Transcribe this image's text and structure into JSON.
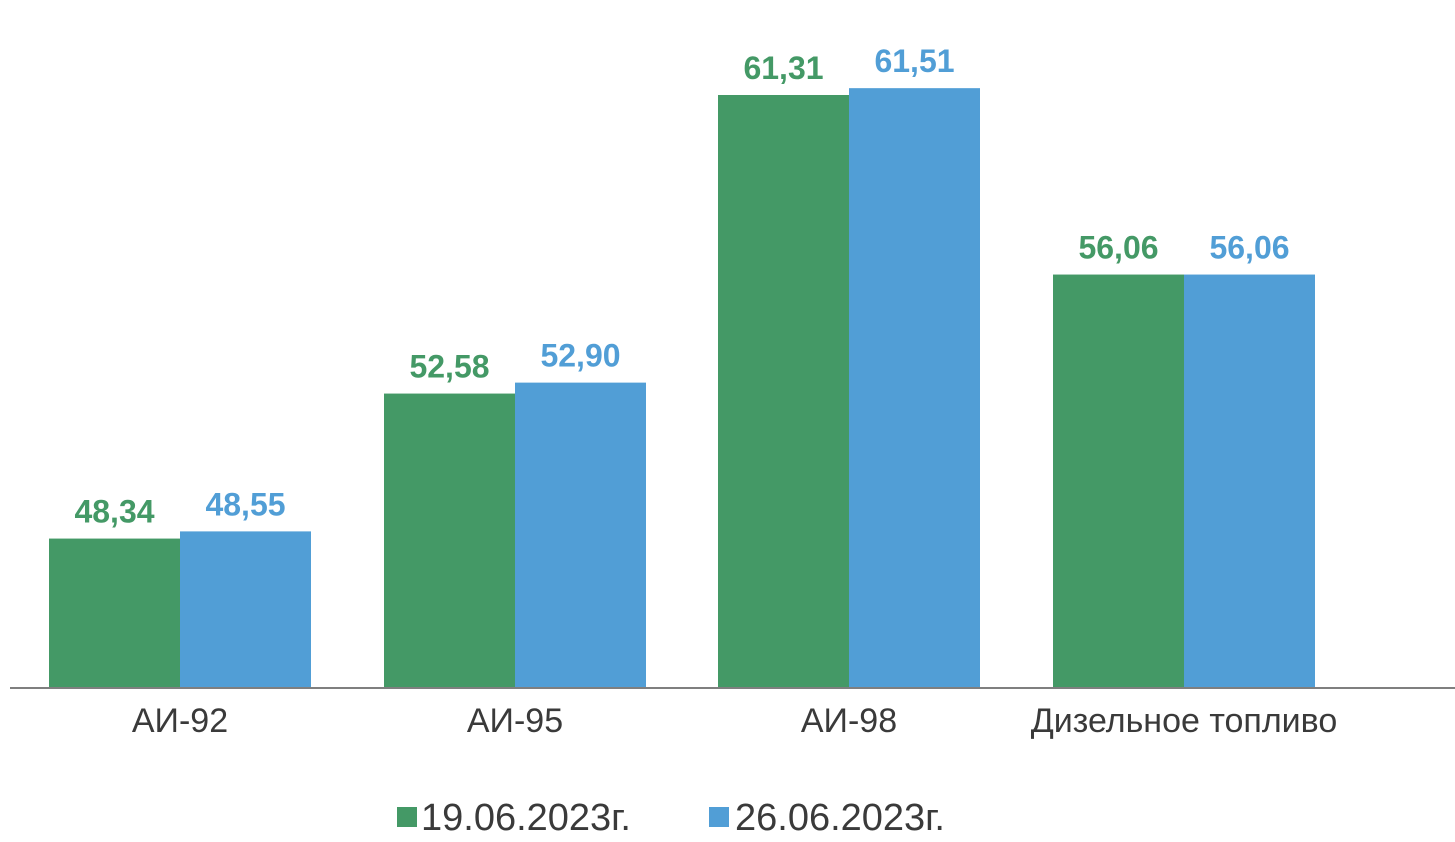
{
  "chart_data": {
    "type": "bar",
    "categories": [
      "АИ-92",
      "АИ-95",
      "АИ-98",
      "Дизельное топливо"
    ],
    "series": [
      {
        "name": "19.06.2023г.",
        "color": "#449966",
        "values": [
          48.34,
          52.58,
          61.31,
          56.06
        ],
        "labels": [
          "48,34",
          "52,58",
          "61,31",
          "56,06"
        ]
      },
      {
        "name": "26.06.2023г.",
        "color": "#519ED6",
        "values": [
          48.55,
          52.9,
          61.51,
          56.06
        ],
        "labels": [
          "48,55",
          "52,90",
          "61,51",
          "56,06"
        ]
      }
    ],
    "title": "",
    "xlabel": "",
    "ylabel": "",
    "ylim": [
      44.0,
      62.0
    ],
    "grid": false,
    "legend": "bottom-center",
    "axis_color": "#7f7f7f"
  }
}
